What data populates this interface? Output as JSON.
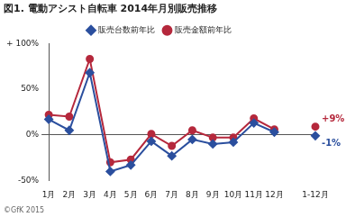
{
  "chart_data": {
    "type": "line",
    "title": "図1. 電動アシスト自転車 2014年月別販売推移",
    "footer": "©GfK 2015",
    "categories": [
      "1月",
      "2月",
      "3月",
      "4月",
      "5月",
      "6月",
      "7月",
      "8月",
      "9月",
      "10月",
      "11月",
      "12月",
      null,
      "1-12月"
    ],
    "series": [
      {
        "name": "販売台数前年比",
        "color": "#2b4f9e",
        "marker": "diamond",
        "values": [
          17,
          5,
          68,
          -40,
          -33,
          -7,
          -23,
          -5,
          -10,
          -8,
          13,
          3,
          null,
          -1
        ],
        "value_labels": [
          null,
          null,
          null,
          null,
          null,
          null,
          null,
          null,
          null,
          null,
          null,
          null,
          null,
          "-1%"
        ]
      },
      {
        "name": "販売金額前年比",
        "color": "#b5283c",
        "marker": "circle",
        "values": [
          22,
          20,
          83,
          -30,
          -27,
          1,
          -12,
          5,
          -3,
          -3,
          18,
          6,
          null,
          9
        ],
        "value_labels": [
          null,
          null,
          null,
          null,
          null,
          null,
          null,
          null,
          null,
          null,
          null,
          null,
          null,
          "+9%"
        ]
      }
    ],
    "ylim": [
      -50,
      100
    ],
    "yticks": [
      {
        "value": -50,
        "label": "-50%"
      },
      {
        "value": 0,
        "label": "0%"
      },
      {
        "value": 50,
        "label": "50%"
      },
      {
        "value": 100,
        "label": "+ 100%"
      }
    ],
    "grid": false,
    "legend": "top",
    "data_labels": true
  }
}
